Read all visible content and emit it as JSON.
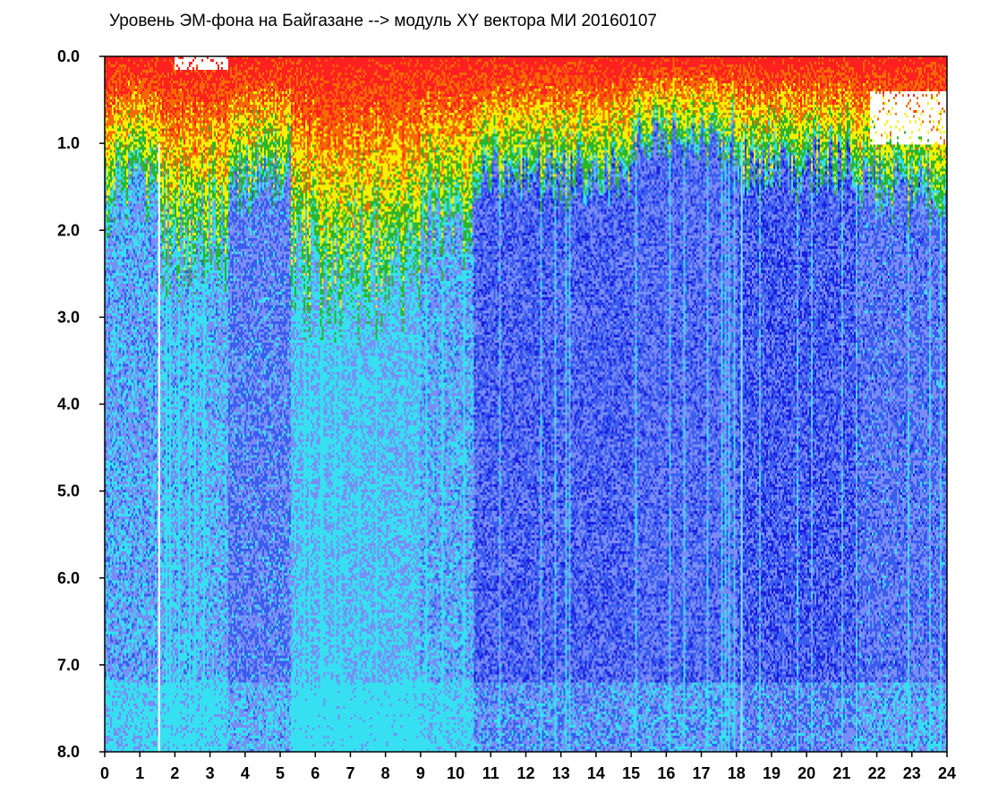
{
  "chart_data": {
    "type": "heatmap",
    "title": "Уровень ЭМ-фона на Байгазане  -->  модуль XY вектора МИ  20160107",
    "xlabel": "",
    "ylabel": "",
    "x_ticks": [
      "0",
      "1",
      "2",
      "3",
      "4",
      "5",
      "6",
      "7",
      "8",
      "9",
      "10",
      "11",
      "12",
      "13",
      "14",
      "15",
      "16",
      "17",
      "18",
      "19",
      "20",
      "21",
      "22",
      "23",
      "24"
    ],
    "y_ticks": [
      "0.0",
      "1.0",
      "2.0",
      "3.0",
      "4.0",
      "5.0",
      "6.0",
      "7.0",
      "8.0"
    ],
    "xlim": [
      0,
      24
    ],
    "ylim": [
      0,
      8
    ],
    "y_inverted": true,
    "grid": false,
    "legend": "none",
    "colormap": [
      "#1a1ee0",
      "#3a5cf0",
      "#7a8cf5",
      "#36e0f0",
      "#2bb52b",
      "#f5f000",
      "#f56a00",
      "#ff2020",
      "#ffffff"
    ],
    "bands": [
      {
        "x": [
          0.0,
          1.5
        ],
        "cutoff": 1.7,
        "intensity": 0.55
      },
      {
        "x": [
          1.5,
          3.5
        ],
        "cutoff": 2.2,
        "intensity": 0.6
      },
      {
        "x": [
          3.5,
          5.3
        ],
        "cutoff": 1.5,
        "intensity": 0.35
      },
      {
        "x": [
          5.3,
          9.0
        ],
        "cutoff": 2.6,
        "intensity": 0.7
      },
      {
        "x": [
          9.0,
          10.5
        ],
        "cutoff": 2.0,
        "intensity": 0.55
      },
      {
        "x": [
          10.5,
          15.0
        ],
        "cutoff": 1.4,
        "intensity": 0.2
      },
      {
        "x": [
          15.0,
          18.0
        ],
        "cutoff": 1.0,
        "intensity": 0.25
      },
      {
        "x": [
          18.0,
          21.5
        ],
        "cutoff": 1.3,
        "intensity": 0.15
      },
      {
        "x": [
          21.5,
          24.0
        ],
        "cutoff": 1.6,
        "intensity": 0.3
      }
    ],
    "white_gaps": [
      {
        "x": [
          21.8,
          24.0
        ],
        "y": [
          0.4,
          1.0
        ]
      },
      {
        "x": [
          2.0,
          3.5
        ],
        "y": [
          0.0,
          0.15
        ]
      }
    ],
    "vertical_lines": [
      1.55,
      18.15
    ]
  }
}
